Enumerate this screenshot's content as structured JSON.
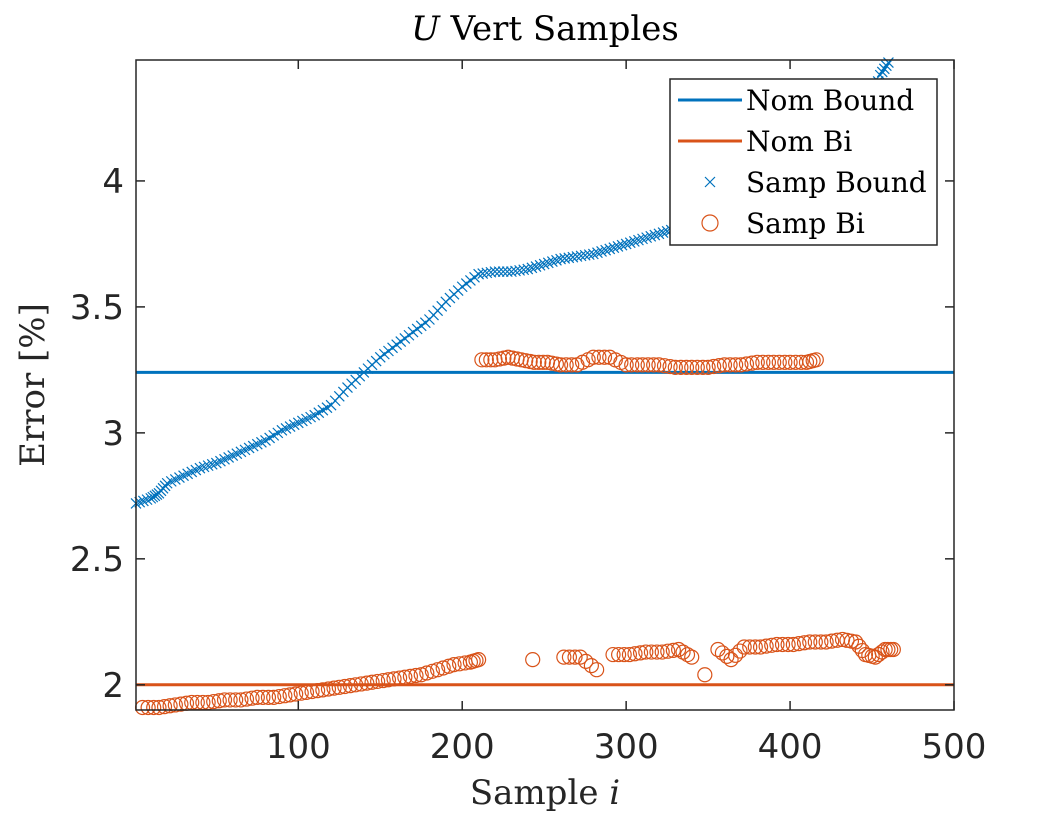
{
  "chart_data": {
    "type": "scatter",
    "title_symbol": "U",
    "title_rest": " Vert Samples",
    "xlabel_main": "Sample ",
    "xlabel_symbol": "i",
    "ylabel": "Error [%]",
    "xlim": [
      1,
      500
    ],
    "ylim": [
      1.9,
      4.48
    ],
    "x_ticks": [
      100,
      200,
      300,
      400,
      500
    ],
    "y_ticks": [
      2,
      2.5,
      3,
      3.5,
      4
    ],
    "x_tick_labels": [
      "100",
      "200",
      "300",
      "400",
      "500"
    ],
    "y_tick_labels": [
      "2",
      "2.5",
      "3",
      "3.5",
      "4"
    ],
    "grid": false,
    "legend_position": "top-right",
    "colors": {
      "blue": "#0072BD",
      "orange": "#D95319",
      "axis": "#262626"
    },
    "series": [
      {
        "name": "Nom Bound",
        "kind": "hline",
        "color": "#0072BD",
        "y": 3.24
      },
      {
        "name": "Nom Bi",
        "kind": "hline",
        "color": "#D95319",
        "y": 2.0
      },
      {
        "name": "Samp Bound",
        "kind": "scatter",
        "marker": "x",
        "color": "#0072BD",
        "points": [
          [
            1,
            2.72
          ],
          [
            10,
            2.74
          ],
          [
            15,
            2.76
          ],
          [
            20,
            2.8
          ],
          [
            30,
            2.83
          ],
          [
            40,
            2.86
          ],
          [
            50,
            2.88
          ],
          [
            60,
            2.91
          ],
          [
            70,
            2.94
          ],
          [
            80,
            2.97
          ],
          [
            90,
            3.01
          ],
          [
            100,
            3.04
          ],
          [
            110,
            3.07
          ],
          [
            120,
            3.11
          ],
          [
            130,
            3.18
          ],
          [
            140,
            3.24
          ],
          [
            150,
            3.3
          ],
          [
            160,
            3.35
          ],
          [
            170,
            3.4
          ],
          [
            180,
            3.45
          ],
          [
            190,
            3.52
          ],
          [
            200,
            3.58
          ],
          [
            210,
            3.63
          ],
          [
            220,
            3.64
          ],
          [
            230,
            3.64
          ],
          [
            240,
            3.65
          ],
          [
            250,
            3.67
          ],
          [
            260,
            3.69
          ],
          [
            270,
            3.7
          ],
          [
            280,
            3.71
          ],
          [
            290,
            3.73
          ],
          [
            300,
            3.75
          ],
          [
            310,
            3.77
          ],
          [
            320,
            3.79
          ],
          [
            330,
            3.81
          ],
          [
            340,
            3.84
          ],
          [
            350,
            3.87
          ],
          [
            360,
            3.89
          ],
          [
            370,
            3.91
          ],
          [
            380,
            3.94
          ],
          [
            390,
            3.97
          ],
          [
            400,
            4.0
          ],
          [
            410,
            4.03
          ],
          [
            420,
            4.06
          ],
          [
            430,
            4.1
          ],
          [
            440,
            4.18
          ],
          [
            450,
            4.32
          ],
          [
            455,
            4.42
          ],
          [
            460,
            4.47
          ]
        ]
      },
      {
        "name": "Samp Bi",
        "kind": "scatter",
        "marker": "o",
        "color": "#D95319",
        "points": [
          [
            5,
            1.91
          ],
          [
            15,
            1.91
          ],
          [
            25,
            1.92
          ],
          [
            35,
            1.93
          ],
          [
            45,
            1.93
          ],
          [
            55,
            1.94
          ],
          [
            65,
            1.94
          ],
          [
            75,
            1.95
          ],
          [
            85,
            1.95
          ],
          [
            95,
            1.96
          ],
          [
            105,
            1.97
          ],
          [
            115,
            1.98
          ],
          [
            125,
            1.99
          ],
          [
            135,
            2.0
          ],
          [
            145,
            2.01
          ],
          [
            155,
            2.02
          ],
          [
            165,
            2.03
          ],
          [
            175,
            2.04
          ],
          [
            185,
            2.06
          ],
          [
            195,
            2.08
          ],
          [
            205,
            2.09
          ],
          [
            210,
            2.1
          ],
          [
            212,
            3.29
          ],
          [
            220,
            3.29
          ],
          [
            228,
            3.3
          ],
          [
            236,
            3.29
          ],
          [
            244,
            3.28
          ],
          [
            252,
            3.28
          ],
          [
            260,
            3.27
          ],
          [
            270,
            3.27
          ],
          [
            280,
            3.3
          ],
          [
            290,
            3.3
          ],
          [
            300,
            3.27
          ],
          [
            310,
            3.27
          ],
          [
            320,
            3.27
          ],
          [
            330,
            3.26
          ],
          [
            340,
            3.26
          ],
          [
            350,
            3.26
          ],
          [
            360,
            3.27
          ],
          [
            370,
            3.27
          ],
          [
            380,
            3.28
          ],
          [
            390,
            3.28
          ],
          [
            400,
            3.28
          ],
          [
            410,
            3.28
          ],
          [
            416,
            3.29
          ],
          [
            243,
            2.1
          ],
          [
            262,
            2.11
          ],
          [
            272,
            2.11
          ],
          [
            282,
            2.06
          ],
          [
            292,
            2.12
          ],
          [
            302,
            2.12
          ],
          [
            312,
            2.13
          ],
          [
            322,
            2.13
          ],
          [
            332,
            2.14
          ],
          [
            340,
            2.11
          ],
          [
            348,
            2.04
          ],
          [
            356,
            2.14
          ],
          [
            364,
            2.1
          ],
          [
            372,
            2.15
          ],
          [
            382,
            2.15
          ],
          [
            392,
            2.16
          ],
          [
            402,
            2.16
          ],
          [
            412,
            2.17
          ],
          [
            422,
            2.17
          ],
          [
            432,
            2.18
          ],
          [
            440,
            2.17
          ],
          [
            446,
            2.12
          ],
          [
            452,
            2.11
          ],
          [
            458,
            2.14
          ],
          [
            463,
            2.14
          ]
        ]
      }
    ]
  }
}
